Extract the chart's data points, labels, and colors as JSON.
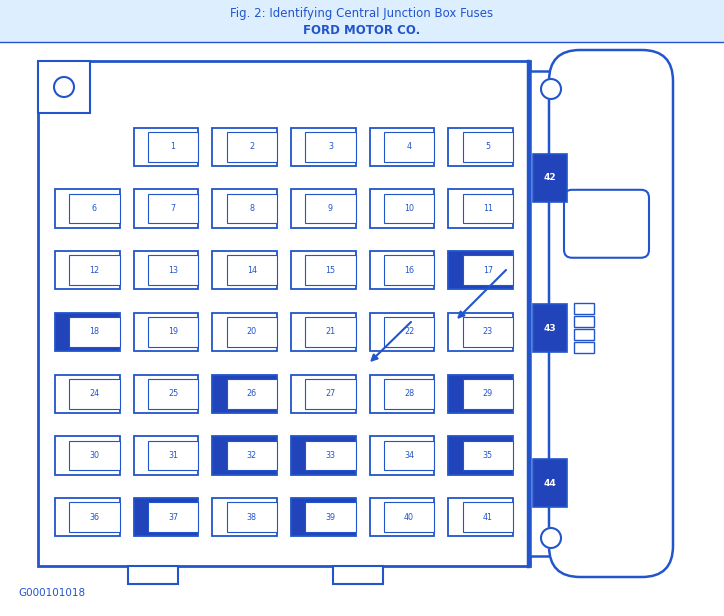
{
  "title_line1": "Fig. 2: Identifying Central Junction Box Fuses",
  "title_line2": "FORD MOTOR CO.",
  "bg_color": "#ffffff",
  "blue": "#2255cc",
  "fill_blue": "#2244bb",
  "header_bg": "#ddeeff",
  "fuses": [
    {
      "num": 1,
      "row": 0,
      "col": 1,
      "filled": false
    },
    {
      "num": 2,
      "row": 0,
      "col": 2,
      "filled": false
    },
    {
      "num": 3,
      "row": 0,
      "col": 3,
      "filled": false
    },
    {
      "num": 4,
      "row": 0,
      "col": 4,
      "filled": false
    },
    {
      "num": 5,
      "row": 0,
      "col": 5,
      "filled": false
    },
    {
      "num": 6,
      "row": 1,
      "col": 0,
      "filled": false
    },
    {
      "num": 7,
      "row": 1,
      "col": 1,
      "filled": false
    },
    {
      "num": 8,
      "row": 1,
      "col": 2,
      "filled": false
    },
    {
      "num": 9,
      "row": 1,
      "col": 3,
      "filled": false
    },
    {
      "num": 10,
      "row": 1,
      "col": 4,
      "filled": false
    },
    {
      "num": 11,
      "row": 1,
      "col": 5,
      "filled": false
    },
    {
      "num": 12,
      "row": 2,
      "col": 0,
      "filled": false
    },
    {
      "num": 13,
      "row": 2,
      "col": 1,
      "filled": false
    },
    {
      "num": 14,
      "row": 2,
      "col": 2,
      "filled": false
    },
    {
      "num": 15,
      "row": 2,
      "col": 3,
      "filled": false
    },
    {
      "num": 16,
      "row": 2,
      "col": 4,
      "filled": false
    },
    {
      "num": 17,
      "row": 2,
      "col": 5,
      "filled": true
    },
    {
      "num": 18,
      "row": 3,
      "col": 0,
      "filled": true
    },
    {
      "num": 19,
      "row": 3,
      "col": 1,
      "filled": false
    },
    {
      "num": 20,
      "row": 3,
      "col": 2,
      "filled": false
    },
    {
      "num": 21,
      "row": 3,
      "col": 3,
      "filled": false
    },
    {
      "num": 22,
      "row": 3,
      "col": 4,
      "filled": false
    },
    {
      "num": 23,
      "row": 3,
      "col": 5,
      "filled": false
    },
    {
      "num": 24,
      "row": 4,
      "col": 0,
      "filled": false
    },
    {
      "num": 25,
      "row": 4,
      "col": 1,
      "filled": false
    },
    {
      "num": 26,
      "row": 4,
      "col": 2,
      "filled": true
    },
    {
      "num": 27,
      "row": 4,
      "col": 3,
      "filled": false
    },
    {
      "num": 28,
      "row": 4,
      "col": 4,
      "filled": false
    },
    {
      "num": 29,
      "row": 4,
      "col": 5,
      "filled": true
    },
    {
      "num": 30,
      "row": 5,
      "col": 0,
      "filled": false
    },
    {
      "num": 31,
      "row": 5,
      "col": 1,
      "filled": false
    },
    {
      "num": 32,
      "row": 5,
      "col": 2,
      "filled": true
    },
    {
      "num": 33,
      "row": 5,
      "col": 3,
      "filled": true
    },
    {
      "num": 34,
      "row": 5,
      "col": 4,
      "filled": false
    },
    {
      "num": 35,
      "row": 5,
      "col": 5,
      "filled": true
    },
    {
      "num": 36,
      "row": 6,
      "col": 0,
      "filled": false
    },
    {
      "num": 37,
      "row": 6,
      "col": 1,
      "filled": true
    },
    {
      "num": 38,
      "row": 6,
      "col": 2,
      "filled": false
    },
    {
      "num": 39,
      "row": 6,
      "col": 3,
      "filled": true
    },
    {
      "num": 40,
      "row": 6,
      "col": 4,
      "filled": false
    },
    {
      "num": 41,
      "row": 6,
      "col": 5,
      "filled": false
    }
  ],
  "footer_text": "G000101018"
}
